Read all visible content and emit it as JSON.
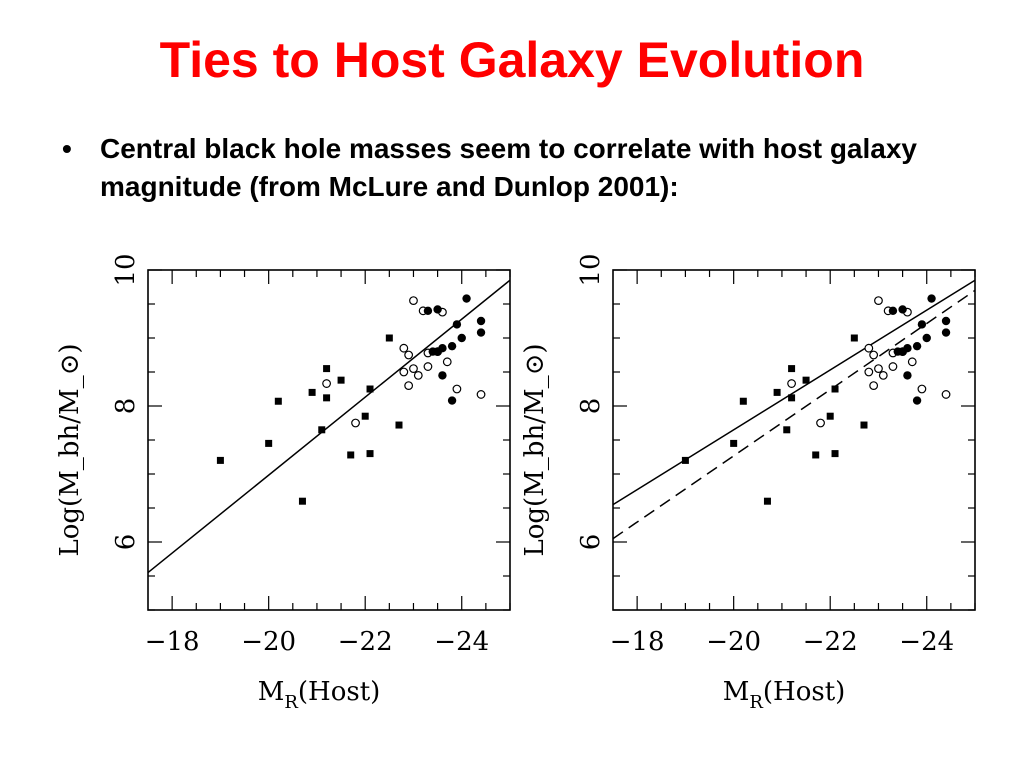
{
  "title": "Ties to Host Galaxy Evolution",
  "title_color": "#ff0000",
  "bullet": {
    "marker": "•",
    "text": "Central black hole masses seem to correlate with host galaxy magnitude (from McLure and Dunlop 2001):"
  },
  "chart_data": [
    {
      "type": "scatter",
      "title": "",
      "xlabel_main": "M",
      "xlabel_sub": "R",
      "xlabel_tail": "(Host)",
      "ylabel": "Log(M_bh/M_⊙)",
      "xlim": [
        -17.5,
        -25
      ],
      "ylim": [
        5,
        10
      ],
      "xticks": [
        -18,
        -20,
        -22,
        -24
      ],
      "xtick_labels": [
        "−18",
        "−20",
        "−22",
        "−24"
      ],
      "yticks": [
        6,
        8,
        10
      ],
      "ytick_labels": [
        "6",
        "8",
        "10"
      ],
      "series": [
        {
          "marker": "filled-square",
          "points": [
            [
              -19.0,
              7.2
            ],
            [
              -20.0,
              7.45
            ],
            [
              -20.2,
              8.07
            ],
            [
              -20.7,
              6.6
            ],
            [
              -20.9,
              8.2
            ],
            [
              -21.1,
              7.65
            ],
            [
              -21.2,
              8.55
            ],
            [
              -21.2,
              8.12
            ],
            [
              -21.5,
              8.38
            ],
            [
              -21.7,
              7.28
            ],
            [
              -22.0,
              7.85
            ],
            [
              -22.1,
              7.3
            ],
            [
              -22.1,
              8.25
            ],
            [
              -22.5,
              9.0
            ],
            [
              -22.7,
              7.72
            ]
          ]
        },
        {
          "marker": "open-circle",
          "points": [
            [
              -21.2,
              8.33
            ],
            [
              -21.8,
              7.75
            ],
            [
              -22.8,
              8.85
            ],
            [
              -22.8,
              8.5
            ],
            [
              -22.9,
              8.75
            ],
            [
              -22.9,
              8.3
            ],
            [
              -23.0,
              8.55
            ],
            [
              -23.0,
              9.55
            ],
            [
              -23.1,
              8.45
            ],
            [
              -23.2,
              9.4
            ],
            [
              -23.3,
              8.58
            ],
            [
              -23.3,
              8.78
            ],
            [
              -23.5,
              8.8
            ],
            [
              -23.6,
              9.38
            ],
            [
              -23.7,
              8.65
            ],
            [
              -23.9,
              8.25
            ],
            [
              -24.4,
              8.17
            ]
          ]
        },
        {
          "marker": "filled-circle",
          "points": [
            [
              -23.3,
              9.4
            ],
            [
              -23.4,
              8.8
            ],
            [
              -23.5,
              8.8
            ],
            [
              -23.5,
              9.42
            ],
            [
              -23.6,
              8.85
            ],
            [
              -23.6,
              8.45
            ],
            [
              -23.8,
              8.88
            ],
            [
              -23.8,
              8.08
            ],
            [
              -23.9,
              9.2
            ],
            [
              -24.0,
              9.0
            ],
            [
              -24.1,
              9.58
            ],
            [
              -24.4,
              9.25
            ],
            [
              -24.4,
              9.08
            ]
          ]
        }
      ],
      "lines": [
        {
          "style": "solid",
          "from": [
            -17.5,
            5.55
          ],
          "to": [
            -25,
            9.85
          ]
        }
      ]
    },
    {
      "type": "scatter",
      "title": "",
      "xlabel_main": "M",
      "xlabel_sub": "R",
      "xlabel_tail": "(Host)",
      "ylabel": "Log(M_bh/M_⊙)",
      "xlim": [
        -17.5,
        -25
      ],
      "ylim": [
        5,
        10
      ],
      "xticks": [
        -18,
        -20,
        -22,
        -24
      ],
      "xtick_labels": [
        "−18",
        "−20",
        "−22",
        "−24"
      ],
      "yticks": [
        6,
        8,
        10
      ],
      "ytick_labels": [
        "6",
        "8",
        "10"
      ],
      "series": [
        {
          "marker": "filled-square",
          "points": [
            [
              -19.0,
              7.2
            ],
            [
              -20.0,
              7.45
            ],
            [
              -20.2,
              8.07
            ],
            [
              -20.7,
              6.6
            ],
            [
              -20.9,
              8.2
            ],
            [
              -21.1,
              7.65
            ],
            [
              -21.2,
              8.55
            ],
            [
              -21.2,
              8.12
            ],
            [
              -21.5,
              8.38
            ],
            [
              -21.7,
              7.28
            ],
            [
              -22.0,
              7.85
            ],
            [
              -22.1,
              7.3
            ],
            [
              -22.1,
              8.25
            ],
            [
              -22.5,
              9.0
            ],
            [
              -22.7,
              7.72
            ]
          ]
        },
        {
          "marker": "open-circle",
          "points": [
            [
              -21.2,
              8.33
            ],
            [
              -21.8,
              7.75
            ],
            [
              -22.8,
              8.85
            ],
            [
              -22.8,
              8.5
            ],
            [
              -22.9,
              8.75
            ],
            [
              -22.9,
              8.3
            ],
            [
              -23.0,
              8.55
            ],
            [
              -23.0,
              9.55
            ],
            [
              -23.1,
              8.45
            ],
            [
              -23.2,
              9.4
            ],
            [
              -23.3,
              8.58
            ],
            [
              -23.3,
              8.78
            ],
            [
              -23.5,
              8.8
            ],
            [
              -23.6,
              9.38
            ],
            [
              -23.7,
              8.65
            ],
            [
              -23.9,
              8.25
            ],
            [
              -24.4,
              8.17
            ]
          ]
        },
        {
          "marker": "filled-circle",
          "points": [
            [
              -23.3,
              9.4
            ],
            [
              -23.4,
              8.8
            ],
            [
              -23.5,
              8.8
            ],
            [
              -23.5,
              9.42
            ],
            [
              -23.6,
              8.85
            ],
            [
              -23.6,
              8.45
            ],
            [
              -23.8,
              8.88
            ],
            [
              -23.8,
              8.08
            ],
            [
              -23.9,
              9.2
            ],
            [
              -24.0,
              9.0
            ],
            [
              -24.1,
              9.58
            ],
            [
              -24.4,
              9.25
            ],
            [
              -24.4,
              9.08
            ]
          ]
        }
      ],
      "lines": [
        {
          "style": "solid",
          "from": [
            -17.5,
            6.55
          ],
          "to": [
            -25,
            9.85
          ]
        },
        {
          "style": "dashed",
          "from": [
            -17.5,
            6.05
          ],
          "to": [
            -25,
            9.7
          ]
        }
      ]
    }
  ]
}
